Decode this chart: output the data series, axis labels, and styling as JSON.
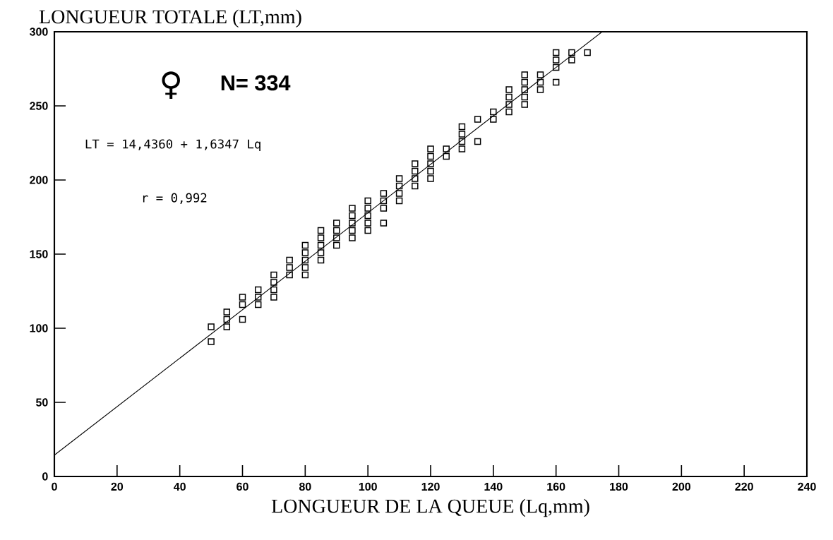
{
  "chart_data": {
    "type": "scatter",
    "ylabel": "LONGUEUR TOTALE (LT,mm)",
    "xlabel": "LONGUEUR DE LA QUEUE (Lq,mm)",
    "annotations": [
      "♀",
      "N= 334",
      "LT = 14,4360 + 1,6347 Lq",
      "r = 0,992"
    ],
    "xlim": [
      0,
      240
    ],
    "ylim": [
      0,
      300
    ],
    "xticks": [
      0,
      20,
      40,
      60,
      80,
      100,
      120,
      140,
      160,
      180,
      200,
      220,
      240
    ],
    "yticks": [
      0,
      50,
      100,
      150,
      200,
      250,
      300
    ],
    "grid": false,
    "series": [
      {
        "type": "scatter",
        "color": "#000000",
        "marker": "square",
        "x": [
          50,
          50,
          55,
          55,
          55,
          60,
          60,
          60,
          65,
          65,
          65,
          70,
          70,
          70,
          70,
          75,
          75,
          75,
          80,
          80,
          80,
          80,
          80,
          85,
          85,
          85,
          85,
          85,
          90,
          90,
          90,
          90,
          95,
          95,
          95,
          95,
          95,
          100,
          100,
          100,
          100,
          100,
          105,
          105,
          105,
          105,
          110,
          110,
          110,
          110,
          115,
          115,
          115,
          115,
          120,
          120,
          120,
          120,
          120,
          125,
          125,
          130,
          130,
          130,
          130,
          135,
          135,
          140,
          140,
          145,
          145,
          145,
          145,
          150,
          150,
          150,
          150,
          150,
          155,
          155,
          155,
          160,
          160,
          160,
          160,
          165,
          165,
          170
        ],
        "values": [
          101,
          91,
          111,
          106,
          101,
          121,
          116,
          106,
          126,
          121,
          116,
          136,
          131,
          126,
          121,
          146,
          141,
          136,
          156,
          151,
          146,
          141,
          136,
          166,
          161,
          156,
          151,
          146,
          171,
          166,
          161,
          156,
          181,
          176,
          171,
          166,
          161,
          186,
          181,
          176,
          171,
          166,
          191,
          186,
          181,
          171,
          201,
          196,
          191,
          186,
          211,
          206,
          201,
          196,
          221,
          216,
          211,
          206,
          201,
          221,
          216,
          236,
          231,
          226,
          221,
          241,
          226,
          246,
          241,
          261,
          256,
          251,
          246,
          271,
          266,
          261,
          256,
          251,
          271,
          266,
          261,
          286,
          281,
          276,
          266,
          286,
          281,
          286
        ]
      },
      {
        "type": "line",
        "color": "#000000",
        "marker": "none",
        "line_style": "solid",
        "x": [
          0,
          174.7
        ],
        "values": [
          14.4,
          300
        ]
      }
    ]
  }
}
